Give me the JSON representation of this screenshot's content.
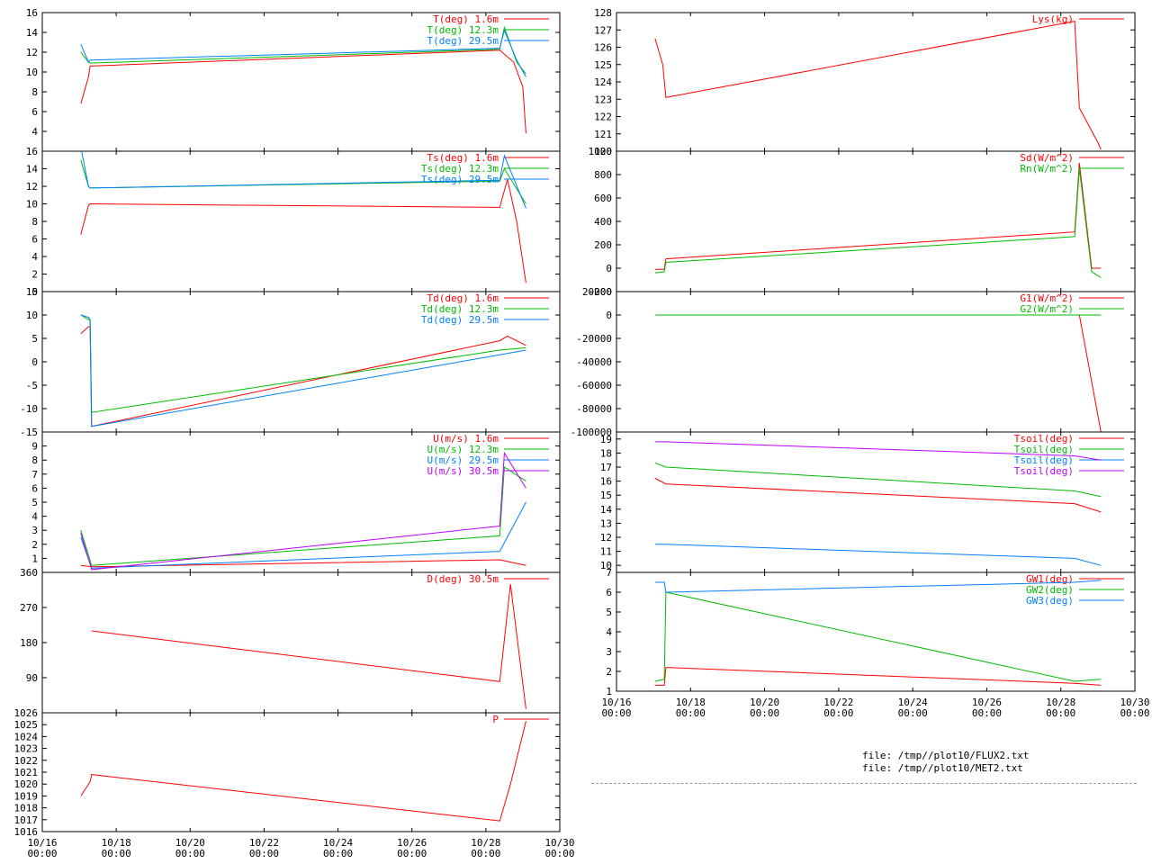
{
  "colors": {
    "red": "#ff0000",
    "green": "#00bb00",
    "blue": "#0080ff",
    "purple": "#c000ff"
  },
  "x_axis": {
    "ticks": [
      {
        "date": "10/16",
        "time": "00:00"
      },
      {
        "date": "10/18",
        "time": "00:00"
      },
      {
        "date": "10/20",
        "time": "00:00"
      },
      {
        "date": "10/22",
        "time": "00:00"
      },
      {
        "date": "10/24",
        "time": "00:00"
      },
      {
        "date": "10/26",
        "time": "00:00"
      },
      {
        "date": "10/28",
        "time": "00:00"
      },
      {
        "date": "10/30",
        "time": "00:00"
      }
    ],
    "range": [
      "10/16 00:00",
      "10/30 00:00"
    ]
  },
  "footer": {
    "files": [
      "file: /tmp//plot10/FLUX2.txt",
      "file: /tmp//plot10/MET2.txt"
    ]
  },
  "chart_data": [
    {
      "id": "T",
      "type": "line",
      "ylim": [
        2,
        16
      ],
      "yticks": [
        4,
        6,
        8,
        10,
        12,
        14,
        16
      ],
      "series": [
        {
          "name": "T(deg)  1.6m",
          "color": "red",
          "points": [
            [
              "10/17 01:00",
              6.8
            ],
            [
              "10/17 06:00",
              9.5
            ],
            [
              "10/17 07:00",
              10.6
            ],
            [
              "10/28 09:00",
              12.2
            ],
            [
              "10/28 18:00",
              11.0
            ],
            [
              "10/29 00:00",
              8.5
            ],
            [
              "10/29 02:00",
              3.8
            ]
          ]
        },
        {
          "name": "T(deg) 12.3m",
          "color": "green",
          "points": [
            [
              "10/17 01:00",
              12.0
            ],
            [
              "10/17 06:00",
              11.0
            ],
            [
              "10/17 07:00",
              10.9
            ],
            [
              "10/28 09:00",
              12.3
            ],
            [
              "10/28 12:00",
              14.5
            ],
            [
              "10/28 20:00",
              11.0
            ],
            [
              "10/29 02:00",
              9.8
            ]
          ]
        },
        {
          "name": "T(deg) 29.5m",
          "color": "blue",
          "points": [
            [
              "10/17 01:00",
              12.8
            ],
            [
              "10/17 06:00",
              11.0
            ],
            [
              "10/17 07:00",
              11.2
            ],
            [
              "10/28 09:00",
              12.4
            ],
            [
              "10/28 12:00",
              14.2
            ],
            [
              "10/28 20:00",
              11.2
            ],
            [
              "10/29 02:00",
              9.5
            ]
          ]
        }
      ]
    },
    {
      "id": "Ts",
      "type": "line",
      "ylim": [
        0,
        16
      ],
      "yticks": [
        0,
        2,
        4,
        6,
        8,
        10,
        12,
        14,
        16
      ],
      "series": [
        {
          "name": "Ts(deg)  1.6m",
          "color": "red",
          "points": [
            [
              "10/17 01:00",
              6.5
            ],
            [
              "10/17 06:00",
              9.8
            ],
            [
              "10/17 07:00",
              10.0
            ],
            [
              "10/28 09:00",
              9.6
            ],
            [
              "10/28 14:00",
              12.8
            ],
            [
              "10/28 20:00",
              8.0
            ],
            [
              "10/29 02:00",
              1.0
            ]
          ]
        },
        {
          "name": "Ts(deg) 12.3m",
          "color": "green",
          "points": [
            [
              "10/17 01:00",
              15.0
            ],
            [
              "10/17 06:00",
              12.0
            ],
            [
              "10/17 07:00",
              11.8
            ],
            [
              "10/28 09:00",
              12.6
            ],
            [
              "10/28 12:00",
              14.0
            ],
            [
              "10/29 02:00",
              10.0
            ]
          ]
        },
        {
          "name": "Ts(deg) 29.5m",
          "color": "blue",
          "points": [
            [
              "10/17 01:00",
              16.5
            ],
            [
              "10/17 06:00",
              12.0
            ],
            [
              "10/17 07:00",
              11.8
            ],
            [
              "10/28 09:00",
              12.7
            ],
            [
              "10/28 12:00",
              15.5
            ],
            [
              "10/29 02:00",
              9.5
            ]
          ]
        }
      ]
    },
    {
      "id": "Td",
      "type": "line",
      "ylim": [
        -15,
        15
      ],
      "yticks": [
        -15,
        -10,
        -5,
        0,
        5,
        10,
        15
      ],
      "series": [
        {
          "name": "Td(deg)  1.6m",
          "color": "red",
          "points": [
            [
              "10/17 01:00",
              6.0
            ],
            [
              "10/17 06:00",
              7.5
            ],
            [
              "10/17 07:00",
              7.5
            ],
            [
              "10/17 08:00",
              -13.8
            ],
            [
              "10/28 09:00",
              4.5
            ],
            [
              "10/28 14:00",
              5.5
            ],
            [
              "10/29 02:00",
              3.5
            ]
          ]
        },
        {
          "name": "Td(deg) 12.3m",
          "color": "green",
          "points": [
            [
              "10/17 01:00",
              10.0
            ],
            [
              "10/17 06:00",
              9.0
            ],
            [
              "10/17 07:00",
              9.0
            ],
            [
              "10/17 08:00",
              -10.8
            ],
            [
              "10/28 09:00",
              2.5
            ],
            [
              "10/29 02:00",
              3.0
            ]
          ]
        },
        {
          "name": "Td(deg) 29.5m",
          "color": "blue",
          "points": [
            [
              "10/17 01:00",
              10.0
            ],
            [
              "10/17 06:00",
              9.5
            ],
            [
              "10/17 07:00",
              9.0
            ],
            [
              "10/17 08:00",
              -13.8
            ],
            [
              "10/28 09:00",
              1.5
            ],
            [
              "10/29 02:00",
              2.5
            ]
          ]
        }
      ]
    },
    {
      "id": "U",
      "type": "line",
      "ylim": [
        0,
        10
      ],
      "yticks": [
        1,
        2,
        3,
        4,
        5,
        6,
        7,
        8,
        9
      ],
      "series": [
        {
          "name": "U(m/s)  1.6m",
          "color": "red",
          "points": [
            [
              "10/17 01:00",
              0.5
            ],
            [
              "10/17 08:00",
              0.4
            ],
            [
              "10/28 09:00",
              0.9
            ],
            [
              "10/29 02:00",
              0.5
            ]
          ]
        },
        {
          "name": "U(m/s) 12.3m",
          "color": "green",
          "points": [
            [
              "10/17 01:00",
              3.0
            ],
            [
              "10/17 08:00",
              0.5
            ],
            [
              "10/28 09:00",
              2.6
            ],
            [
              "10/28 12:00",
              7.5
            ],
            [
              "10/29 02:00",
              6.5
            ]
          ]
        },
        {
          "name": "U(m/s) 29.5m",
          "color": "blue",
          "points": [
            [
              "10/17 01:00",
              2.5
            ],
            [
              "10/17 08:00",
              0.3
            ],
            [
              "10/28 09:00",
              1.5
            ],
            [
              "10/29 02:00",
              5.0
            ]
          ]
        },
        {
          "name": "U(m/s) 30.5m",
          "color": "purple",
          "points": [
            [
              "10/17 01:00",
              2.8
            ],
            [
              "10/17 08:00",
              0.2
            ],
            [
              "10/28 09:00",
              3.3
            ],
            [
              "10/28 12:00",
              8.5
            ],
            [
              "10/29 02:00",
              6.0
            ]
          ]
        }
      ]
    },
    {
      "id": "D",
      "type": "line",
      "ylim": [
        0,
        360
      ],
      "yticks": [
        90,
        180,
        270,
        360
      ],
      "series": [
        {
          "name": "D(deg)  30.5m",
          "color": "red",
          "points": [
            [
              "10/17 08:00",
              210
            ],
            [
              "10/28 09:00",
              80
            ],
            [
              "10/28 16:00",
              330
            ],
            [
              "10/29 02:00",
              10
            ]
          ]
        }
      ]
    },
    {
      "id": "P",
      "type": "line",
      "ylim": [
        1016,
        1026
      ],
      "yticks": [
        1016,
        1017,
        1018,
        1019,
        1020,
        1021,
        1022,
        1023,
        1024,
        1025,
        1026
      ],
      "series": [
        {
          "name": "P",
          "color": "red",
          "points": [
            [
              "10/17 01:00",
              1019.0
            ],
            [
              "10/17 07:00",
              1020.2
            ],
            [
              "10/17 08:00",
              1020.8
            ],
            [
              "10/28 09:00",
              1016.9
            ],
            [
              "10/28 16:00",
              1020.0
            ],
            [
              "10/29 02:00",
              1025.3
            ]
          ]
        }
      ]
    },
    {
      "id": "Lys",
      "type": "line",
      "ylim": [
        120,
        128
      ],
      "yticks": [
        120,
        121,
        122,
        123,
        124,
        125,
        126,
        127,
        128
      ],
      "series": [
        {
          "name": "Lys(kg)",
          "color": "red",
          "points": [
            [
              "10/17 01:00",
              126.5
            ],
            [
              "10/17 06:00",
              125.0
            ],
            [
              "10/17 08:00",
              123.1
            ],
            [
              "10/28 09:00",
              127.5
            ],
            [
              "10/28 12:00",
              122.5
            ],
            [
              "10/29 00:00",
              120.5
            ],
            [
              "10/29 02:00",
              120.1
            ]
          ]
        }
      ]
    },
    {
      "id": "SdRn",
      "type": "line",
      "ylim": [
        -200,
        1000
      ],
      "yticks": [
        -200,
        0,
        200,
        400,
        600,
        800,
        1000
      ],
      "series": [
        {
          "name": "Sd(W/m^2)",
          "color": "red",
          "points": [
            [
              "10/17 01:00",
              -10
            ],
            [
              "10/17 07:00",
              -10
            ],
            [
              "10/17 08:00",
              80
            ],
            [
              "10/28 09:00",
              310
            ],
            [
              "10/28 12:00",
              900
            ],
            [
              "10/28 20:00",
              0
            ],
            [
              "10/29 02:00",
              0
            ]
          ]
        },
        {
          "name": "Rn(W/m^2)",
          "color": "green",
          "points": [
            [
              "10/17 01:00",
              -40
            ],
            [
              "10/17 07:00",
              -30
            ],
            [
              "10/17 08:00",
              50
            ],
            [
              "10/28 09:00",
              270
            ],
            [
              "10/28 12:00",
              850
            ],
            [
              "10/28 20:00",
              -30
            ],
            [
              "10/29 02:00",
              -80
            ]
          ]
        }
      ]
    },
    {
      "id": "G",
      "type": "line",
      "ylim": [
        -100000,
        20000
      ],
      "yticks": [
        -100000,
        -80000,
        -60000,
        -40000,
        -20000,
        0,
        20000
      ],
      "series": [
        {
          "name": "G1(W/m^2)",
          "color": "red",
          "points": [
            [
              "10/28 12:00",
              0
            ],
            [
              "10/29 02:00",
              -100000
            ]
          ]
        },
        {
          "name": "G2(W/m^2)",
          "color": "green",
          "points": [
            [
              "10/17 01:00",
              0
            ],
            [
              "10/29 02:00",
              0
            ]
          ]
        }
      ]
    },
    {
      "id": "Tsoil",
      "type": "line",
      "ylim": [
        9.5,
        19.5
      ],
      "yticks": [
        10,
        11,
        12,
        13,
        14,
        15,
        16,
        17,
        18,
        19
      ],
      "series": [
        {
          "name": "Tsoil(deg)",
          "color": "red",
          "points": [
            [
              "10/17 01:00",
              16.2
            ],
            [
              "10/17 08:00",
              15.8
            ],
            [
              "10/28 09:00",
              14.4
            ],
            [
              "10/29 02:00",
              13.8
            ]
          ]
        },
        {
          "name": "Tsoil(deg)",
          "color": "green",
          "points": [
            [
              "10/17 01:00",
              17.3
            ],
            [
              "10/17 08:00",
              17.0
            ],
            [
              "10/28 09:00",
              15.3
            ],
            [
              "10/29 02:00",
              14.9
            ]
          ]
        },
        {
          "name": "Tsoil(deg)",
          "color": "blue",
          "points": [
            [
              "10/17 01:00",
              11.5
            ],
            [
              "10/17 08:00",
              11.5
            ],
            [
              "10/28 09:00",
              10.5
            ],
            [
              "10/29 02:00",
              10.0
            ]
          ]
        },
        {
          "name": "Tsoil(deg)",
          "color": "purple",
          "points": [
            [
              "10/17 01:00",
              18.8
            ],
            [
              "10/17 08:00",
              18.8
            ],
            [
              "10/28 09:00",
              17.8
            ],
            [
              "10/29 02:00",
              17.5
            ]
          ]
        }
      ]
    },
    {
      "id": "GW",
      "type": "line",
      "ylim": [
        1,
        7
      ],
      "yticks": [
        1,
        2,
        3,
        4,
        5,
        6,
        7
      ],
      "series": [
        {
          "name": "GW1(deg)",
          "color": "red",
          "points": [
            [
              "10/17 01:00",
              1.3
            ],
            [
              "10/17 07:00",
              1.3
            ],
            [
              "10/17 08:00",
              2.2
            ],
            [
              "10/28 09:00",
              1.4
            ],
            [
              "10/29 02:00",
              1.3
            ]
          ]
        },
        {
          "name": "GW2(deg)",
          "color": "green",
          "points": [
            [
              "10/17 01:00",
              1.5
            ],
            [
              "10/17 07:00",
              1.6
            ],
            [
              "10/17 08:00",
              6.0
            ],
            [
              "10/28 09:00",
              1.5
            ],
            [
              "10/29 02:00",
              1.6
            ]
          ]
        },
        {
          "name": "GW3(deg)",
          "color": "blue",
          "points": [
            [
              "10/17 01:00",
              6.5
            ],
            [
              "10/17 07:00",
              6.5
            ],
            [
              "10/17 08:00",
              6.0
            ],
            [
              "10/28 09:00",
              6.5
            ],
            [
              "10/29 02:00",
              6.6
            ]
          ]
        }
      ]
    }
  ]
}
